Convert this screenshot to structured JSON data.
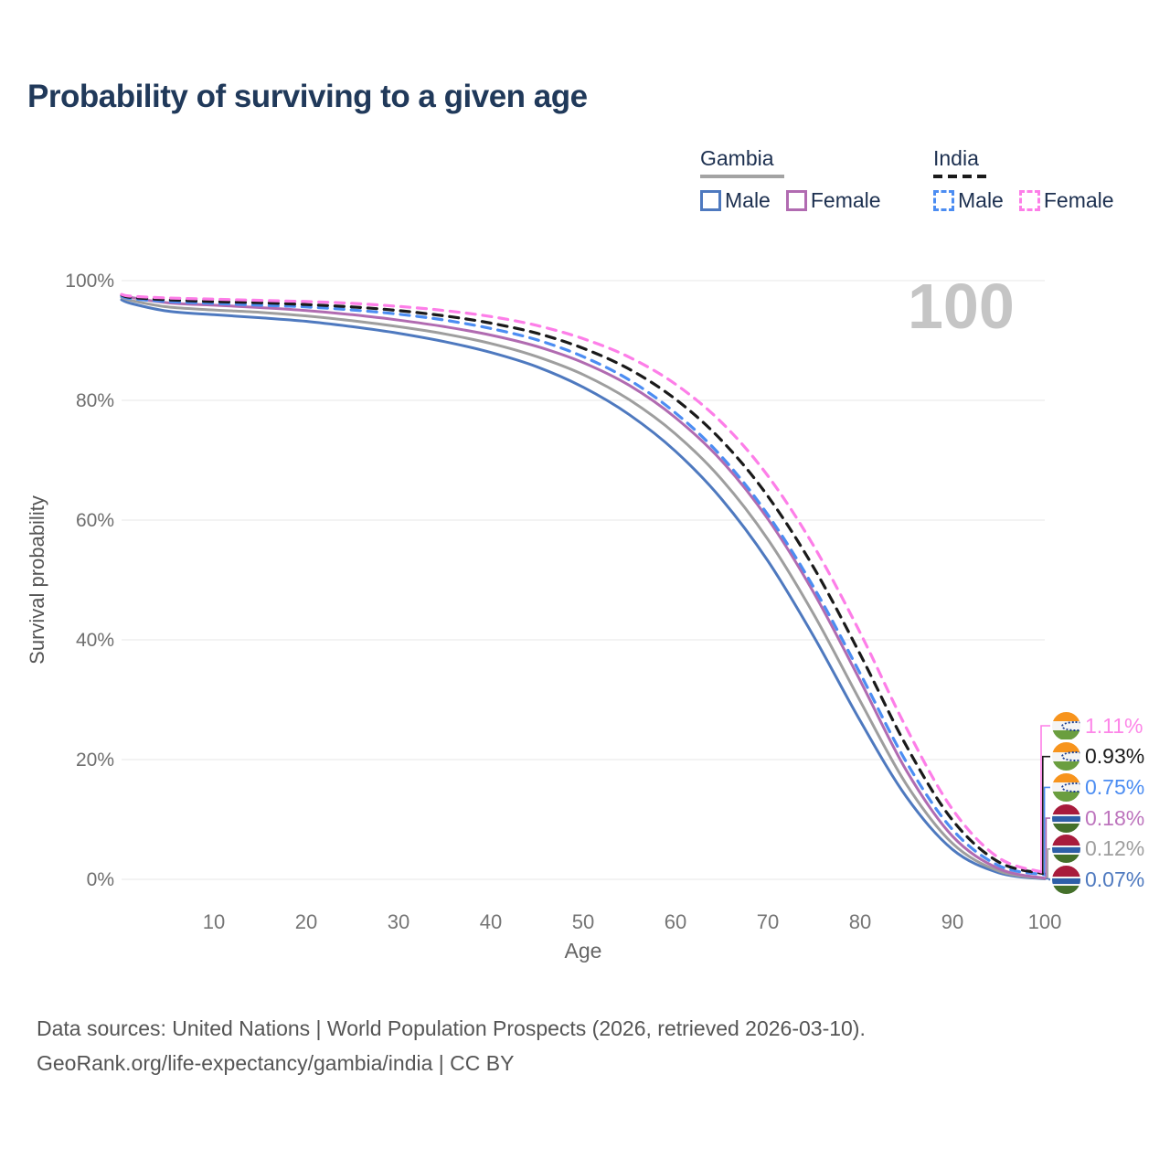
{
  "title": "Probability of surviving to a given age",
  "watermark_age": "100",
  "legend": {
    "groups": [
      {
        "name": "Gambia",
        "style": "solid",
        "underline_color": "#a3a3a3",
        "items": [
          {
            "label": "Male",
            "color": "#4e79bf"
          },
          {
            "label": "Female",
            "color": "#b16bb1"
          }
        ]
      },
      {
        "name": "India",
        "style": "dashed",
        "underline_color": "#1a1a1a",
        "items": [
          {
            "label": "Male",
            "color": "#4c8df2"
          },
          {
            "label": "Female",
            "color": "#fd7ee8"
          }
        ]
      }
    ]
  },
  "chart_data": {
    "type": "line",
    "title": "Probability of surviving to a given age",
    "xlabel": "Age",
    "ylabel": "Survival probability",
    "xlim": [
      0,
      100
    ],
    "ylim": [
      0,
      100
    ],
    "x_ticks": [
      10,
      20,
      30,
      40,
      50,
      60,
      70,
      80,
      90,
      100
    ],
    "y_ticks": [
      0,
      20,
      40,
      60,
      80,
      100
    ],
    "y_tick_suffix": "%",
    "grid": "horizontal",
    "legend_position": "top-right",
    "x": [
      0,
      1,
      5,
      10,
      15,
      20,
      25,
      30,
      35,
      40,
      45,
      50,
      55,
      60,
      65,
      70,
      75,
      80,
      85,
      90,
      95,
      100
    ],
    "series": [
      {
        "name": "Gambia Male",
        "country": "Gambia",
        "sex": "male",
        "flag": "gambia",
        "color": "#4e79bf",
        "dash": "solid",
        "end_label": "0.07%",
        "label_color": "#4e79bf",
        "values": [
          96.8,
          96.2,
          94.9,
          94.3,
          93.8,
          93.2,
          92.3,
          91.2,
          89.8,
          88.0,
          85.6,
          82.2,
          77.6,
          71.5,
          63.5,
          53.2,
          40.5,
          26.5,
          13.8,
          5.0,
          1.1,
          0.07
        ]
      },
      {
        "name": "Gambia",
        "country": "Gambia",
        "sex": "all",
        "flag": "gambia",
        "color": "#9e9e9e",
        "dash": "solid",
        "end_label": "0.12%",
        "label_color": "#9e9e9e",
        "values": [
          97.2,
          96.7,
          95.6,
          95.1,
          94.7,
          94.1,
          93.3,
          92.3,
          91.1,
          89.5,
          87.3,
          84.3,
          80.1,
          74.4,
          66.8,
          56.8,
          44.2,
          29.8,
          15.9,
          6.0,
          1.4,
          0.12
        ]
      },
      {
        "name": "Gambia Female",
        "country": "Gambia",
        "sex": "female",
        "flag": "gambia",
        "color": "#b16bb1",
        "dash": "solid",
        "end_label": "0.18%",
        "label_color": "#bd74bd",
        "values": [
          97.6,
          97.2,
          96.3,
          95.9,
          95.5,
          95.0,
          94.3,
          93.4,
          92.3,
          90.9,
          89.0,
          86.3,
          82.5,
          77.1,
          69.9,
          60.2,
          47.8,
          33.2,
          18.2,
          7.2,
          1.8,
          0.18
        ]
      },
      {
        "name": "India Male",
        "country": "India",
        "sex": "male",
        "flag": "india",
        "color": "#4c8df2",
        "dash": "dashed",
        "end_label": "0.75%",
        "label_color": "#4c8df2",
        "values": [
          97.4,
          97.0,
          96.5,
          96.2,
          95.9,
          95.6,
          95.1,
          94.4,
          93.4,
          92.0,
          90.1,
          87.3,
          83.4,
          77.9,
          70.6,
          60.9,
          48.7,
          34.4,
          19.6,
          8.3,
          2.3,
          0.75
        ]
      },
      {
        "name": "India",
        "country": "India",
        "sex": "all",
        "flag": "india",
        "color": "#1a1a1a",
        "dash": "dashed",
        "end_label": "0.93%",
        "label_color": "#1a1a1a",
        "values": [
          97.6,
          97.2,
          96.8,
          96.5,
          96.3,
          96.0,
          95.6,
          95.0,
          94.1,
          92.9,
          91.2,
          88.7,
          85.2,
          80.2,
          73.3,
          64.0,
          52.0,
          37.6,
          22.3,
          9.9,
          2.9,
          0.93
        ]
      },
      {
        "name": "India Female",
        "country": "India",
        "sex": "female",
        "flag": "india",
        "color": "#fd7ee8",
        "dash": "dashed",
        "end_label": "1.11%",
        "label_color": "#fd86e8",
        "values": [
          97.7,
          97.4,
          97.1,
          96.9,
          96.7,
          96.5,
          96.2,
          95.7,
          95.0,
          94.0,
          92.5,
          90.3,
          87.2,
          82.7,
          76.3,
          67.4,
          55.6,
          41.2,
          25.3,
          11.7,
          3.6,
          1.11
        ]
      }
    ]
  },
  "flags": {
    "india": {
      "bands": [
        {
          "color": "#f7941d",
          "h": 34
        },
        {
          "color": "#f4f4f4",
          "h": 32
        },
        {
          "color": "#6a9e3f",
          "h": 34
        }
      ],
      "chakra": "#1b3f92"
    },
    "gambia": {
      "bands": [
        {
          "color": "#a81c3c",
          "h": 38
        },
        {
          "color": "#f2f2f2",
          "h": 6
        },
        {
          "color": "#2e5fa8",
          "h": 20
        },
        {
          "color": "#f2f2f2",
          "h": 6
        },
        {
          "color": "#44702a",
          "h": 30
        }
      ]
    }
  },
  "footer": {
    "line1": "Data sources: United Nations | World Population Prospects (2026, retrieved 2026-03-10).",
    "line2": "GeoRank.org/life-expectancy/gambia/india | CC BY"
  }
}
